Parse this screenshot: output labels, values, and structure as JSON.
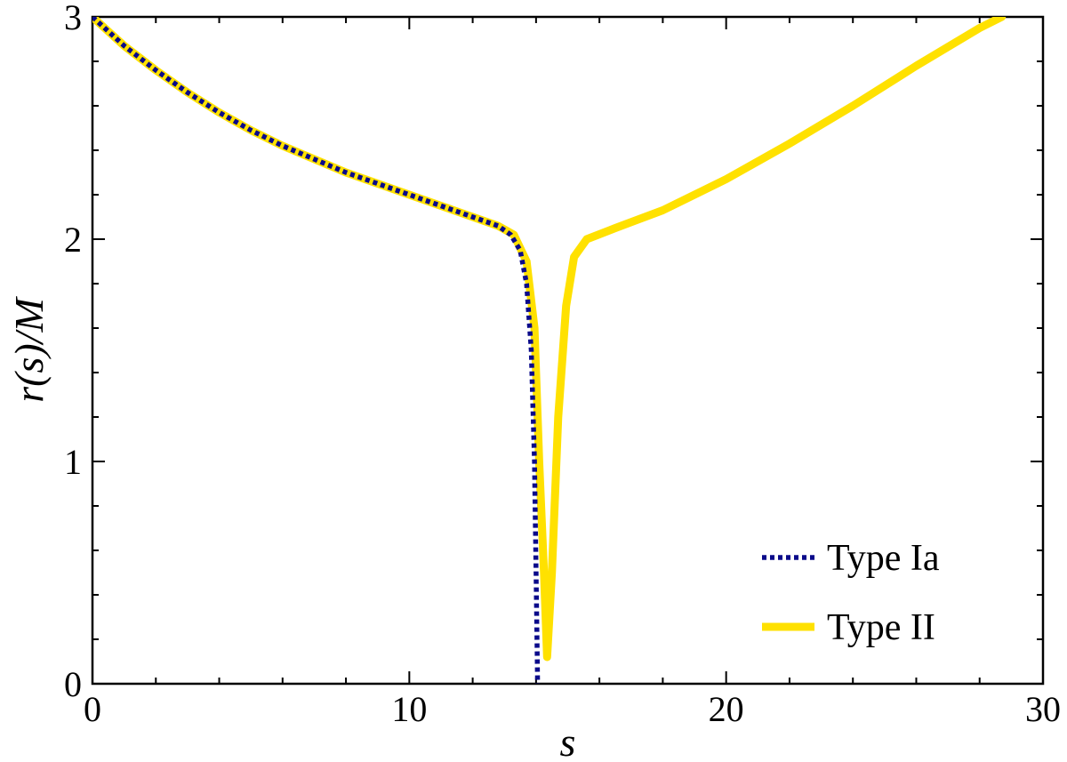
{
  "chart_data": {
    "type": "line",
    "xlabel": "s",
    "ylabel": "r(s)/M",
    "xlim": [
      0,
      30
    ],
    "ylim": [
      0,
      3
    ],
    "xticks": [
      0,
      10,
      20,
      30
    ],
    "yticks": [
      0,
      1,
      2,
      3
    ],
    "x_minor_step": 2,
    "y_minor_step": 0.2,
    "grid": false,
    "legend_position": "bottom-right",
    "series": [
      {
        "name": "Type Ia",
        "color": "#0a0a8a",
        "style": "dotted",
        "points": [
          [
            0,
            3.0
          ],
          [
            1,
            2.87
          ],
          [
            2,
            2.76
          ],
          [
            3,
            2.66
          ],
          [
            4,
            2.57
          ],
          [
            5,
            2.49
          ],
          [
            6,
            2.42
          ],
          [
            7,
            2.36
          ],
          [
            8,
            2.3
          ],
          [
            9,
            2.25
          ],
          [
            10,
            2.2
          ],
          [
            11,
            2.15
          ],
          [
            12,
            2.1
          ],
          [
            12.8,
            2.06
          ],
          [
            13.2,
            2.02
          ],
          [
            13.5,
            1.95
          ],
          [
            13.7,
            1.8
          ],
          [
            13.85,
            1.5
          ],
          [
            13.95,
            1.0
          ],
          [
            14.0,
            0.5
          ],
          [
            14.05,
            0.0
          ]
        ]
      },
      {
        "name": "Type II",
        "color": "#ffe100",
        "style": "solid",
        "points": [
          [
            0,
            3.0
          ],
          [
            1,
            2.87
          ],
          [
            2,
            2.76
          ],
          [
            3,
            2.66
          ],
          [
            4,
            2.57
          ],
          [
            5,
            2.49
          ],
          [
            6,
            2.42
          ],
          [
            7,
            2.36
          ],
          [
            8,
            2.3
          ],
          [
            9,
            2.25
          ],
          [
            10,
            2.2
          ],
          [
            11,
            2.15
          ],
          [
            12,
            2.1
          ],
          [
            12.8,
            2.06
          ],
          [
            13.3,
            2.02
          ],
          [
            13.7,
            1.9
          ],
          [
            13.95,
            1.6
          ],
          [
            14.1,
            1.0
          ],
          [
            14.25,
            0.5
          ],
          [
            14.35,
            0.12
          ],
          [
            14.5,
            0.5
          ],
          [
            14.7,
            1.2
          ],
          [
            14.95,
            1.7
          ],
          [
            15.2,
            1.92
          ],
          [
            15.6,
            2.0
          ],
          [
            16.5,
            2.05
          ],
          [
            18,
            2.13
          ],
          [
            20,
            2.27
          ],
          [
            22,
            2.43
          ],
          [
            24,
            2.6
          ],
          [
            26,
            2.78
          ],
          [
            28,
            2.95
          ],
          [
            28.7,
            3.0
          ]
        ]
      }
    ]
  }
}
